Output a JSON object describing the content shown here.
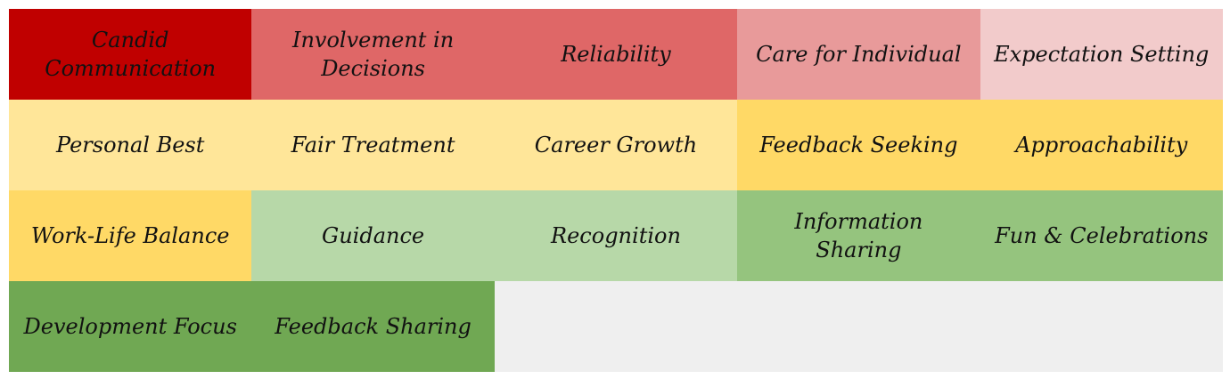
{
  "chart_data": {
    "type": "heatmap",
    "title": "",
    "columns": 5,
    "cells": [
      {
        "label": "Candid\nCommunication",
        "color": "#c00000"
      },
      {
        "label": "Involvement in\nDecisions",
        "color": "#df6767"
      },
      {
        "label": "Reliability",
        "color": "#df6767"
      },
      {
        "label": "Care for Individual",
        "color": "#e89a9a"
      },
      {
        "label": "Expectation Setting",
        "color": "#f2cbcb"
      },
      {
        "label": "Personal Best",
        "color": "#ffe699"
      },
      {
        "label": "Fair Treatment",
        "color": "#ffe699"
      },
      {
        "label": "Career Growth",
        "color": "#ffe699"
      },
      {
        "label": "Feedback Seeking",
        "color": "#ffd966"
      },
      {
        "label": "Approachability",
        "color": "#ffd966"
      },
      {
        "label": "Work-Life Balance",
        "color": "#ffd966"
      },
      {
        "label": "Guidance",
        "color": "#b7d8a8"
      },
      {
        "label": "Recognition",
        "color": "#b7d8a8"
      },
      {
        "label": "Information Sharing",
        "color": "#95c47e"
      },
      {
        "label": "Fun & Celebrations",
        "color": "#95c47e"
      },
      {
        "label": "Development Focus",
        "color": "#70a853"
      },
      {
        "label": "Feedback Sharing",
        "color": "#70a853"
      }
    ],
    "empty_color": "#efefef"
  }
}
